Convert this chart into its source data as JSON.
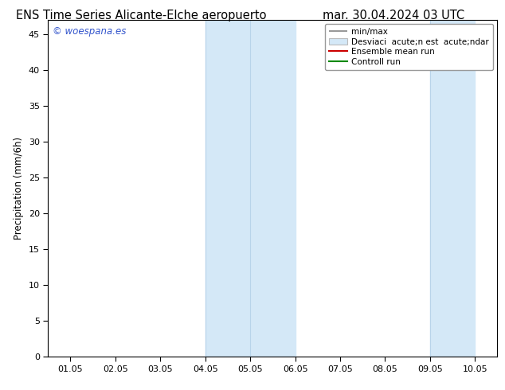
{
  "title_left": "ENS Time Series Alicante-Elche aeropuerto",
  "title_right": "mar. 30.04.2024 03 UTC",
  "ylabel": "Precipitation (mm/6h)",
  "ylim": [
    0,
    47
  ],
  "yticks": [
    0,
    5,
    10,
    15,
    20,
    25,
    30,
    35,
    40,
    45
  ],
  "xtick_labels": [
    "01.05",
    "02.05",
    "03.05",
    "04.05",
    "05.05",
    "06.05",
    "07.05",
    "08.05",
    "09.05",
    "10.05"
  ],
  "bg_color": "#ffffff",
  "plot_bg_color": "#ffffff",
  "shaded_regions": [
    {
      "xstart": 3.0,
      "xend": 5.0,
      "color": "#d4e8f7"
    },
    {
      "xstart": 8.0,
      "xend": 9.0,
      "color": "#d4e8f7"
    }
  ],
  "watermark": "woespana.es",
  "watermark_color": "#3355cc",
  "grid_color": "#cccccc",
  "spine_color": "#000000",
  "tick_color": "#000000",
  "minmax_color": "#999999",
  "stddev_color": "#d4e8f7",
  "stddev_edge_color": "#bbbbbb",
  "ensemble_mean_color": "#cc0000",
  "control_run_color": "#008800",
  "title_fontsize": 10.5,
  "axis_label_fontsize": 8.5,
  "tick_fontsize": 8,
  "legend_fontsize": 7.5,
  "legend_label_minmax": "min/max",
  "legend_label_std": "Desviaci  acute;n est  acute;ndar",
  "legend_label_ens": "Ensemble mean run",
  "legend_label_ctrl": "Controll run"
}
